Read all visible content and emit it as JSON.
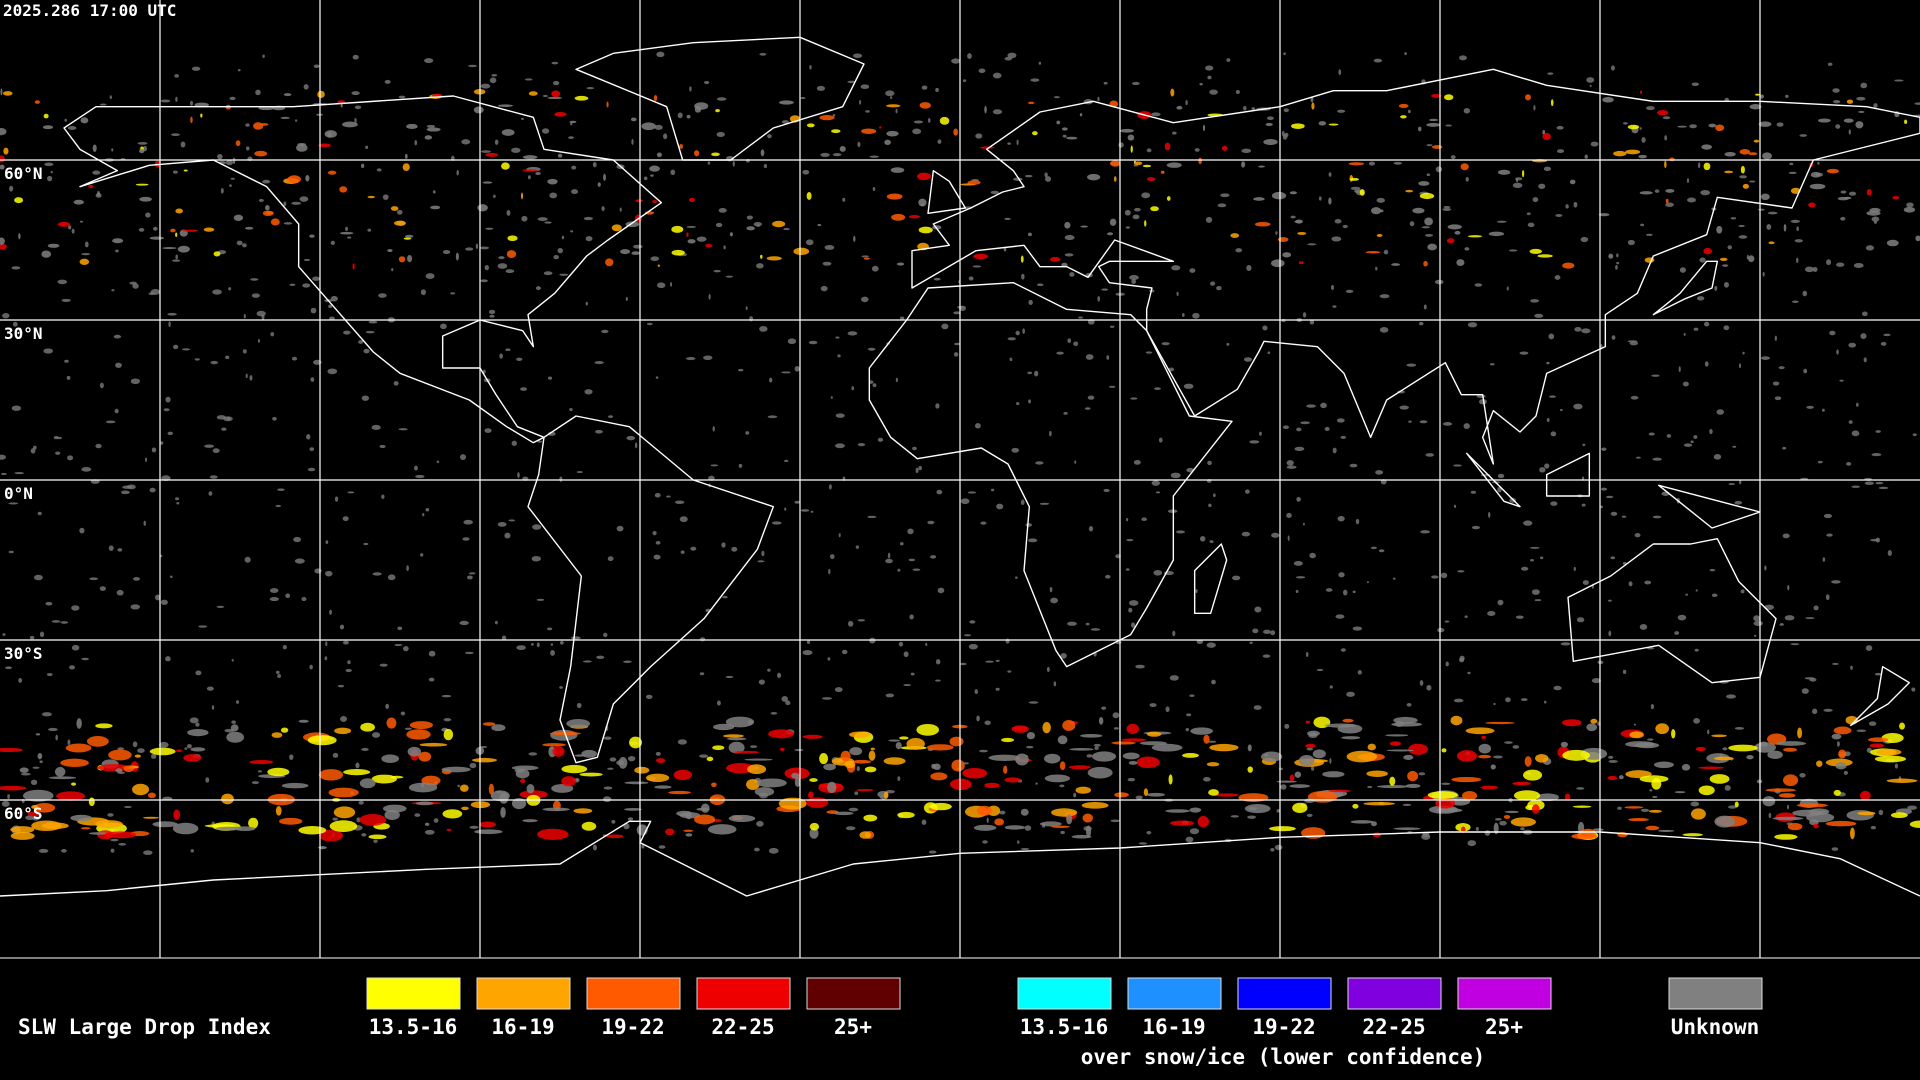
{
  "header": {
    "timestamp": "2025.286 17:00 UTC"
  },
  "latitude_labels": [
    "60°N",
    "30°N",
    "0°N",
    "30°S",
    "60°S"
  ],
  "legend": {
    "title": "SLW Large Drop Index",
    "groups": [
      {
        "items": [
          {
            "label": "13.5-16",
            "color": "#ffff00"
          },
          {
            "label": "16-19",
            "color": "#ffa500"
          },
          {
            "label": "19-22",
            "color": "#ff5a00"
          },
          {
            "label": "22-25",
            "color": "#ee0000"
          },
          {
            "label": "25+",
            "color": "#600000"
          }
        ]
      },
      {
        "items": [
          {
            "label": "13.5-16",
            "color": "#00ffff"
          },
          {
            "label": "16-19",
            "color": "#1e90ff"
          },
          {
            "label": "19-22",
            "color": "#0000ff"
          },
          {
            "label": "22-25",
            "color": "#8000e0"
          },
          {
            "label": "25+",
            "color": "#c000e0"
          }
        ],
        "caption": "over snow/ice (lower confidence)"
      },
      {
        "items": [
          {
            "label": "Unknown",
            "color": "#808080"
          }
        ]
      }
    ]
  }
}
